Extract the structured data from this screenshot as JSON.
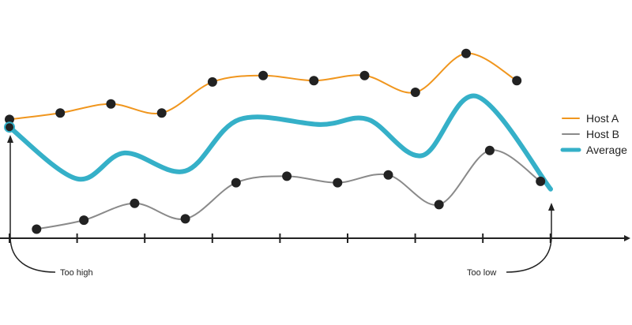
{
  "chart_data": {
    "type": "line",
    "x": [
      0,
      1,
      2,
      3,
      4,
      5,
      6,
      7,
      8,
      9,
      10
    ],
    "series": [
      {
        "name": "Host A",
        "color": "#f0961e",
        "x": [
          0,
          0.75,
          1.5,
          2.25,
          3,
          3.75,
          4.5,
          5.25,
          6,
          6.75,
          7.5
        ],
        "values": [
          4.6,
          4.85,
          5.2,
          4.85,
          6.05,
          6.3,
          6.1,
          6.3,
          5.65,
          7.15,
          6.1
        ]
      },
      {
        "name": "Host B",
        "color": "#8a8a8a",
        "x": [
          0.4,
          1.1,
          1.85,
          2.6,
          3.35,
          4.1,
          4.85,
          5.6,
          6.35,
          7.1,
          7.85
        ],
        "values": [
          0.35,
          0.7,
          1.35,
          0.75,
          2.15,
          2.4,
          2.15,
          2.45,
          1.3,
          3.4,
          2.2
        ]
      },
      {
        "name": "Average",
        "color": "#35b0c8",
        "x": [
          0,
          1,
          1.7,
          2.6,
          3.4,
          4.6,
          5.3,
          6.1,
          6.9,
          8.0
        ],
        "values": [
          4.3,
          2.3,
          3.3,
          2.6,
          4.6,
          4.4,
          4.6,
          3.2,
          5.5,
          1.9
        ]
      }
    ],
    "xlim": [
      0,
      10
    ],
    "ylim": [
      0,
      8
    ],
    "xticks": [
      0,
      1,
      2,
      3,
      4,
      5,
      6,
      7,
      8
    ],
    "grid": false,
    "legend": "right",
    "annotations": [
      {
        "text": "Too high",
        "x": 0
      },
      {
        "text": "Too low",
        "x": 8
      }
    ]
  }
}
